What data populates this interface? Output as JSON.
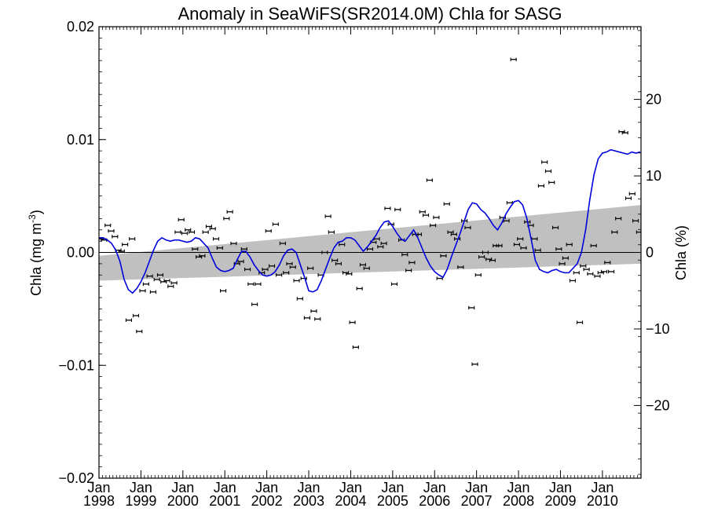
{
  "chart_data": {
    "type": "scatter",
    "title": "Anomaly in SeaWiFS(SR2014.0M) Chla for SASG",
    "ylabel": "Chla (mg m",
    "ylabel_sup": "-3",
    "ylabel_close": ")",
    "y2label": "Chla (%)",
    "xlim": [
      1998.0,
      2010.92
    ],
    "ylim": [
      -0.02,
      0.02
    ],
    "y2lim": [
      -29.5,
      29.5
    ],
    "y_ticks": [
      {
        "value": 0.02,
        "label": "0.02"
      },
      {
        "value": 0.01,
        "label": "0.01"
      },
      {
        "value": 0.0,
        "label": "0.00"
      },
      {
        "value": -0.01,
        "label": "−0.01"
      },
      {
        "value": -0.02,
        "label": "−0.02"
      }
    ],
    "y2_ticks": [
      {
        "value": 20,
        "label": "20"
      },
      {
        "value": 10,
        "label": "10"
      },
      {
        "value": 0,
        "label": "0"
      },
      {
        "value": -10,
        "label": "−10"
      },
      {
        "value": -20,
        "label": "−20"
      }
    ],
    "x_ticks": [
      {
        "value": 1998,
        "month": "Jan",
        "year": "1998"
      },
      {
        "value": 1999,
        "month": "Jan",
        "year": "1999"
      },
      {
        "value": 2000,
        "month": "Jan",
        "year": "2000"
      },
      {
        "value": 2001,
        "month": "Jan",
        "year": "2001"
      },
      {
        "value": 2002,
        "month": "Jan",
        "year": "2002"
      },
      {
        "value": 2003,
        "month": "Jan",
        "year": "2003"
      },
      {
        "value": 2004,
        "month": "Jan",
        "year": "2004"
      },
      {
        "value": 2005,
        "month": "Jan",
        "year": "2005"
      },
      {
        "value": 2006,
        "month": "Jan",
        "year": "2006"
      },
      {
        "value": 2007,
        "month": "Jan",
        "year": "2007"
      },
      {
        "value": 2008,
        "month": "Jan",
        "year": "2008"
      },
      {
        "value": 2009,
        "month": "Jan",
        "year": "2009"
      },
      {
        "value": 2010,
        "month": "Jan",
        "year": "2010"
      }
    ],
    "trend_band": {
      "x": [
        1998.0,
        2010.92
      ],
      "upper": [
        -0.0003,
        0.0042
      ],
      "lower": [
        -0.0025,
        -0.001
      ]
    },
    "colors": {
      "running_mean": "#0000dd",
      "band": "#c0c0c0",
      "points": "#000000",
      "zero_line": "#000000"
    },
    "monthly_anomaly": {
      "x": [
        1998.04,
        1998.12,
        1998.21,
        1998.29,
        1998.38,
        1998.46,
        1998.54,
        1998.62,
        1998.71,
        1998.79,
        1998.88,
        1998.96,
        1999.04,
        1999.12,
        1999.21,
        1999.29,
        1999.38,
        1999.46,
        1999.54,
        1999.62,
        1999.71,
        1999.79,
        1999.88,
        1999.96,
        2000.04,
        2000.12,
        2000.21,
        2000.29,
        2000.38,
        2000.46,
        2000.54,
        2000.62,
        2000.71,
        2000.79,
        2000.88,
        2000.96,
        2001.04,
        2001.12,
        2001.21,
        2001.29,
        2001.38,
        2001.46,
        2001.54,
        2001.62,
        2001.71,
        2001.79,
        2001.88,
        2001.96,
        2002.04,
        2002.12,
        2002.21,
        2002.29,
        2002.38,
        2002.46,
        2002.54,
        2002.62,
        2002.71,
        2002.79,
        2002.88,
        2002.96,
        2003.04,
        2003.12,
        2003.21,
        2003.29,
        2003.38,
        2003.46,
        2003.54,
        2003.62,
        2003.71,
        2003.79,
        2003.88,
        2003.96,
        2004.04,
        2004.12,
        2004.21,
        2004.29,
        2004.38,
        2004.46,
        2004.54,
        2004.62,
        2004.71,
        2004.79,
        2004.88,
        2004.96,
        2005.04,
        2005.12,
        2005.21,
        2005.29,
        2005.38,
        2005.46,
        2005.54,
        2005.62,
        2005.71,
        2005.79,
        2005.88,
        2005.96,
        2006.04,
        2006.12,
        2006.21,
        2006.29,
        2006.38,
        2006.46,
        2006.54,
        2006.62,
        2006.71,
        2006.79,
        2006.88,
        2006.96,
        2007.04,
        2007.12,
        2007.21,
        2007.29,
        2007.38,
        2007.46,
        2007.54,
        2007.62,
        2007.71,
        2007.79,
        2007.88,
        2007.96,
        2008.04,
        2008.12,
        2008.21,
        2008.29,
        2008.38,
        2008.46,
        2008.54,
        2008.62,
        2008.71,
        2008.79,
        2008.88,
        2008.96,
        2009.04,
        2009.12,
        2009.21,
        2009.29,
        2009.38,
        2009.46,
        2009.54,
        2009.62,
        2009.71,
        2009.79,
        2009.88,
        2009.96,
        2010.04,
        2010.12,
        2010.21,
        2010.29,
        2010.38,
        2010.46,
        2010.54,
        2010.62,
        2010.71,
        2010.79,
        2010.88
      ],
      "y": [
        0.0012,
        0.0011,
        0.0024,
        0.0019,
        0.0014,
        0.0002,
        0.0001,
        0.0007,
        -0.006,
        0.0012,
        -0.0056,
        -0.007,
        -0.0034,
        -0.0028,
        -0.0021,
        -0.0035,
        -0.0024,
        -0.002,
        -0.0026,
        -0.0025,
        -0.003,
        -0.0027,
        0.0018,
        0.0029,
        0.0017,
        0.002,
        0.0018,
        0.0003,
        -0.0004,
        -0.0003,
        0.0018,
        0.0023,
        0.0021,
        0.0012,
        0.0004,
        -0.0034,
        0.003,
        0.0036,
        0.0008,
        -0.001,
        -0.0008,
        0.0003,
        -0.0015,
        -0.0028,
        -0.0046,
        -0.0028,
        -0.0018,
        -0.0015,
        0.0019,
        -0.0012,
        0.0025,
        -0.002,
        0.0008,
        -0.0018,
        -0.001,
        -0.0013,
        -0.0025,
        -0.0041,
        -0.0023,
        -0.0058,
        -0.0014,
        -0.0052,
        -0.0059,
        -0.002,
        0.0,
        0.0032,
        0.0018,
        -0.0007,
        -0.001,
        0.0007,
        -0.0018,
        -0.0019,
        -0.0062,
        -0.0084,
        -0.0032,
        -0.0011,
        -0.0014,
        0.0003,
        0.0009,
        0.0012,
        0.0005,
        0.0008,
        0.0039,
        0.0025,
        -0.0028,
        0.0038,
        0.0011,
        -0.0002,
        -0.0016,
        -0.0009,
        0.0016,
        0.0016,
        0.0036,
        0.0033,
        0.0064,
        0.0024,
        0.0031,
        -0.0023,
        -0.0003,
        0.0043,
        0.0018,
        0.0016,
        0.0012,
        -0.0013,
        0.0028,
        0.0022,
        -0.0049,
        -0.0099,
        -0.002,
        -0.0004,
        0.0,
        -0.0006,
        -0.0007,
        0.0006,
        0.0006,
        0.0031,
        0.0028,
        0.0044,
        0.0171,
        0.0007,
        0.0012,
        0.0004,
        0.0027,
        0.0024,
        0.0012,
        0.0002,
        0.0059,
        0.008,
        0.0072,
        0.0062,
        0.0022,
        0.0003,
        -0.001,
        -0.0005,
        0.0007,
        -0.0025,
        -0.0018,
        -0.0062,
        -0.0012,
        -0.0015,
        -0.0019,
        0.0006,
        -0.0021,
        -0.0018,
        -0.0017,
        -0.0009,
        -0.0017,
        0.0018,
        0.003,
        0.0107,
        0.0106,
        0.0048,
        0.0052,
        0.0028,
        0.0018
      ]
    },
    "running_mean": {
      "x": [
        1998.0,
        1998.1,
        1998.2,
        1998.3,
        1998.4,
        1998.5,
        1998.6,
        1998.7,
        1998.8,
        1998.9,
        1999.0,
        1999.1,
        1999.2,
        1999.3,
        1999.4,
        1999.5,
        1999.6,
        1999.7,
        1999.8,
        1999.9,
        2000.0,
        2000.1,
        2000.2,
        2000.3,
        2000.4,
        2000.5,
        2000.6,
        2000.7,
        2000.8,
        2000.9,
        2001.0,
        2001.1,
        2001.2,
        2001.3,
        2001.4,
        2001.5,
        2001.6,
        2001.7,
        2001.8,
        2001.9,
        2002.0,
        2002.1,
        2002.2,
        2002.3,
        2002.4,
        2002.5,
        2002.6,
        2002.7,
        2002.8,
        2002.9,
        2003.0,
        2003.1,
        2003.2,
        2003.3,
        2003.4,
        2003.5,
        2003.6,
        2003.7,
        2003.8,
        2003.9,
        2004.0,
        2004.1,
        2004.2,
        2004.3,
        2004.4,
        2004.5,
        2004.6,
        2004.7,
        2004.8,
        2004.9,
        2005.0,
        2005.1,
        2005.2,
        2005.3,
        2005.4,
        2005.5,
        2005.6,
        2005.7,
        2005.8,
        2005.9,
        2006.0,
        2006.1,
        2006.2,
        2006.3,
        2006.4,
        2006.5,
        2006.6,
        2006.7,
        2006.8,
        2006.9,
        2007.0,
        2007.1,
        2007.2,
        2007.3,
        2007.4,
        2007.5,
        2007.6,
        2007.7,
        2007.8,
        2007.9,
        2008.0,
        2008.1,
        2008.2,
        2008.3,
        2008.4,
        2008.5,
        2008.6,
        2008.7,
        2008.8,
        2008.9,
        2009.0,
        2009.1,
        2009.2,
        2009.3,
        2009.4,
        2009.5,
        2009.6,
        2009.7,
        2009.8,
        2009.9,
        2010.0,
        2010.1,
        2010.2,
        2010.3,
        2010.4,
        2010.5,
        2010.6,
        2010.7,
        2010.8,
        2010.9
      ],
      "y": [
        0.0013,
        0.0013,
        0.0011,
        0.0008,
        0.0002,
        -0.0008,
        -0.0024,
        -0.0033,
        -0.0036,
        -0.0032,
        -0.0026,
        -0.0018,
        -0.0008,
        0.0002,
        0.001,
        0.0013,
        0.0011,
        0.001,
        0.0011,
        0.0011,
        0.001,
        0.0009,
        0.001,
        0.0013,
        0.0012,
        0.0008,
        0.0004,
        -0.0005,
        -0.0013,
        -0.0016,
        -0.0017,
        -0.0016,
        -0.0014,
        -0.0006,
        0.0001,
        0.0001,
        -0.0004,
        -0.0011,
        -0.0016,
        -0.002,
        -0.0021,
        -0.002,
        -0.0017,
        -0.0011,
        -0.0003,
        0.0002,
        0.0003,
        0.0,
        -0.0011,
        -0.0022,
        -0.0034,
        -0.0035,
        -0.0033,
        -0.0025,
        -0.0015,
        -0.0005,
        0.0004,
        0.0009,
        0.001,
        0.0013,
        0.0013,
        0.0011,
        0.0006,
        0.0001,
        0.0005,
        0.001,
        0.0015,
        0.0022,
        0.0027,
        0.0028,
        0.0023,
        0.0017,
        0.0012,
        0.001,
        0.0015,
        0.002,
        0.0013,
        0.0004,
        -0.0005,
        -0.0012,
        -0.0017,
        -0.002,
        -0.0022,
        -0.0015,
        -0.0004,
        0.0006,
        0.0016,
        0.0027,
        0.0038,
        0.0044,
        0.0043,
        0.0038,
        0.0035,
        0.003,
        0.0024,
        0.002,
        0.0026,
        0.0034,
        0.004,
        0.0045,
        0.0046,
        0.0042,
        0.003,
        0.0012,
        -0.0007,
        -0.0015,
        -0.0017,
        -0.0018,
        -0.0016,
        -0.0015,
        -0.0017,
        -0.0018,
        -0.0018,
        -0.0014,
        -0.001,
        0.0,
        0.002,
        0.0047,
        0.0069,
        0.0083,
        0.0088,
        0.0089,
        0.0091,
        0.009,
        0.0089,
        0.0088,
        0.0087,
        0.0089,
        0.0088,
        0.0089
      ]
    }
  }
}
